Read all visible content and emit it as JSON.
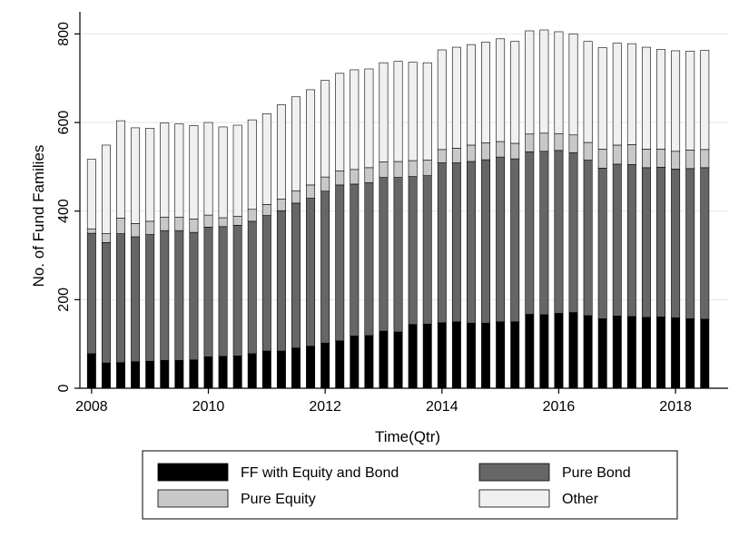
{
  "chart_data": {
    "type": "bar",
    "stacked": true,
    "grid": true,
    "legend_position": "bottom",
    "xlabel": "Time(Qtr)",
    "ylabel": "No. of Fund Families",
    "ylim": [
      0,
      850
    ],
    "y_ticks": [
      0,
      200,
      400,
      600,
      800
    ],
    "x_ticks": [
      {
        "value": 2008,
        "label": "2008"
      },
      {
        "value": 2010,
        "label": "2010"
      },
      {
        "value": 2012,
        "label": "2012"
      },
      {
        "value": 2014,
        "label": "2014"
      },
      {
        "value": 2016,
        "label": "2016"
      },
      {
        "value": 2018,
        "label": "2018"
      }
    ],
    "x": [
      2008.0,
      2008.25,
      2008.5,
      2008.75,
      2009.0,
      2009.25,
      2009.5,
      2009.75,
      2010.0,
      2010.25,
      2010.5,
      2010.75,
      2011.0,
      2011.25,
      2011.5,
      2011.75,
      2012.0,
      2012.25,
      2012.5,
      2012.75,
      2013.0,
      2013.25,
      2013.5,
      2013.75,
      2014.0,
      2014.25,
      2014.5,
      2014.75,
      2015.0,
      2015.25,
      2015.5,
      2015.75,
      2016.0,
      2016.25,
      2016.5,
      2016.75,
      2017.0,
      2017.25,
      2017.5,
      2017.75,
      2018.0,
      2018.25,
      2018.5
    ],
    "series": [
      {
        "name": "FF with Equity and Bond",
        "color": "#000000",
        "values": [
          78,
          57,
          58,
          60,
          61,
          63,
          63,
          64,
          71,
          72,
          73,
          78,
          84,
          84,
          91,
          95,
          102,
          107,
          118,
          119,
          129,
          127,
          144,
          145,
          148,
          150,
          147,
          147,
          150,
          150,
          167,
          166,
          169,
          171,
          164,
          157,
          163,
          162,
          160,
          161,
          159,
          157,
          156
        ]
      },
      {
        "name": "Pure Bond",
        "color": "#666666",
        "values": [
          272,
          272,
          291,
          282,
          286,
          293,
          293,
          288,
          293,
          293,
          295,
          299,
          306,
          317,
          327,
          334,
          343,
          352,
          343,
          345,
          347,
          349,
          334,
          335,
          361,
          359,
          365,
          369,
          372,
          368,
          367,
          369,
          368,
          361,
          351,
          340,
          343,
          343,
          338,
          338,
          336,
          339,
          342
        ]
      },
      {
        "name": "Pure Equity",
        "color": "#c8c8c8",
        "values": [
          10,
          20,
          35,
          30,
          30,
          30,
          30,
          30,
          27,
          20,
          20,
          27,
          25,
          26,
          28,
          30,
          32,
          32,
          33,
          34,
          35,
          36,
          36,
          35,
          30,
          33,
          37,
          38,
          35,
          35,
          40,
          41,
          38,
          40,
          40,
          43,
          43,
          45,
          42,
          41,
          40,
          42,
          41
        ]
      },
      {
        "name": "Other",
        "color": "#f0f0f0",
        "values": [
          157,
          200,
          220,
          216,
          210,
          213,
          211,
          211,
          209,
          205,
          206,
          202,
          205,
          213,
          212,
          215,
          218,
          220,
          225,
          223,
          224,
          226,
          222,
          220,
          225,
          228,
          227,
          227,
          232,
          230,
          233,
          233,
          230,
          228,
          228,
          229,
          230,
          228,
          230,
          225,
          227,
          223,
          224
        ]
      }
    ]
  }
}
